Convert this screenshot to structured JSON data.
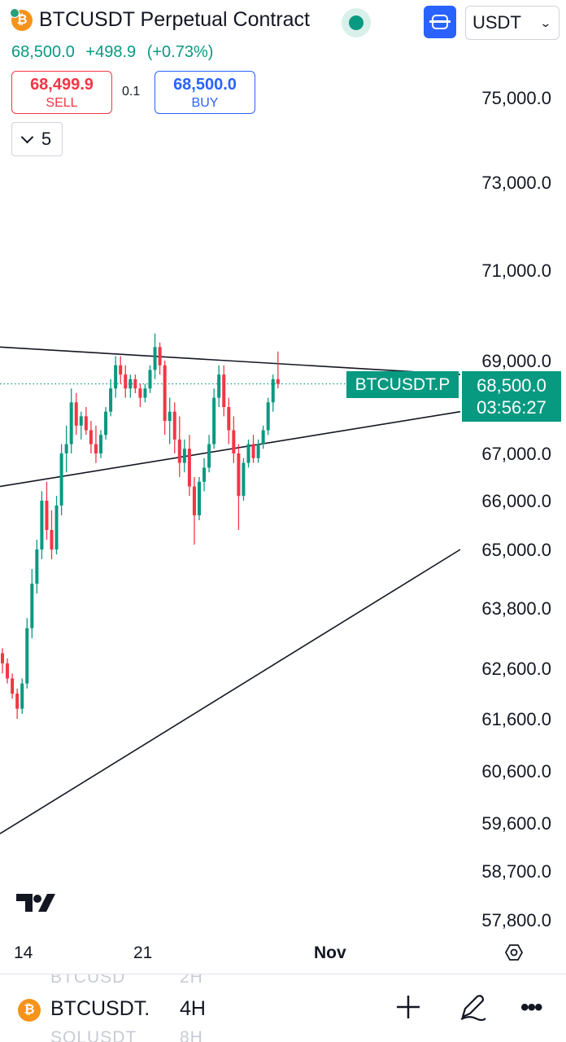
{
  "header": {
    "title": "BTCUSDT Perpetual Contract",
    "coin_glyph": "₿",
    "currency": "USDT",
    "last_price": "68,500.0",
    "change": "+498.9",
    "change_pct": "(+0.73%)",
    "sell_price": "68,499.9",
    "sell_label": "SELL",
    "spread": "0.1",
    "buy_price": "68,500.0",
    "buy_label": "BUY",
    "collapse_count": "5"
  },
  "price_scale": {
    "symbol_tag": "BTCUSDT.P",
    "current_price": "68,500.0",
    "countdown": "03:56:27"
  },
  "colors": {
    "up": "#089981",
    "down": "#f23645",
    "accent": "#2962ff"
  },
  "icons": [
    "bitcoin-icon",
    "live-indicator-icon",
    "scan-icon",
    "chevron-down-icon",
    "tradingview-logo-icon",
    "settings-icon",
    "plus-icon",
    "pen-icon",
    "more-icon"
  ],
  "bottom_bar": {
    "symbol": "BTCUSDT.",
    "interval": "4H",
    "ghost_top_symbol": "BTCUSD",
    "ghost_top_interval": "2H",
    "ghost_bottom_symbol": "SOLUSDT",
    "ghost_bottom_interval": "8H",
    "more": "•••"
  },
  "chart_data": {
    "type": "candlestick",
    "y_ticks": [
      "75,000.0",
      "73,000.0",
      "71,000.0",
      "69,000.0",
      "67,000.0",
      "66,000.0",
      "65,000.0",
      "63,800.0",
      "62,600.0",
      "61,600.0",
      "60,600.0",
      "59,600.0",
      "58,700.0",
      "57,800.0"
    ],
    "x_ticks": [
      "14",
      "21",
      "Nov"
    ],
    "current_price": 68500.0,
    "trendlines": [
      {
        "from": 69300,
        "to": 68700
      },
      {
        "from": 66300,
        "to": 67900
      },
      {
        "from": 59400,
        "to": 65000
      }
    ],
    "candles": [
      [
        62900,
        63000,
        62500,
        62700
      ],
      [
        62700,
        62800,
        62300,
        62400
      ],
      [
        62400,
        62500,
        62000,
        62100
      ],
      [
        62100,
        62200,
        61600,
        61800
      ],
      [
        61800,
        62400,
        61700,
        62300
      ],
      [
        62300,
        63600,
        62200,
        63400
      ],
      [
        63400,
        64600,
        63200,
        64300
      ],
      [
        64300,
        65200,
        64100,
        65000
      ],
      [
        65000,
        66200,
        64800,
        66000
      ],
      [
        66000,
        66400,
        65200,
        65400
      ],
      [
        65400,
        65800,
        64800,
        65000
      ],
      [
        65000,
        66100,
        64900,
        65900
      ],
      [
        65900,
        67200,
        65700,
        67000
      ],
      [
        67000,
        67600,
        66600,
        67200
      ],
      [
        67200,
        68400,
        67000,
        68100
      ],
      [
        68100,
        68300,
        67400,
        67600
      ],
      [
        67600,
        67900,
        67300,
        67800
      ],
      [
        67800,
        68000,
        67400,
        67500
      ],
      [
        67500,
        67700,
        67000,
        67200
      ],
      [
        67200,
        67600,
        66800,
        67000
      ],
      [
        67000,
        67500,
        66900,
        67400
      ],
      [
        67400,
        68000,
        67300,
        67900
      ],
      [
        67900,
        68600,
        67800,
        68400
      ],
      [
        68400,
        69100,
        68200,
        68900
      ],
      [
        68900,
        69100,
        68500,
        68700
      ],
      [
        68700,
        68900,
        68200,
        68400
      ],
      [
        68400,
        68700,
        68200,
        68600
      ],
      [
        68600,
        68700,
        68300,
        68400
      ],
      [
        68400,
        68500,
        68000,
        68200
      ],
      [
        68200,
        68500,
        68100,
        68400
      ],
      [
        68400,
        68900,
        68300,
        68800
      ],
      [
        68800,
        69600,
        68600,
        69300
      ],
      [
        69300,
        69400,
        68700,
        68900
      ],
      [
        68900,
        69000,
        67400,
        67700
      ],
      [
        67700,
        68200,
        67200,
        67900
      ],
      [
        67900,
        68100,
        67000,
        67300
      ],
      [
        67300,
        67800,
        66500,
        66800
      ],
      [
        66800,
        67300,
        66600,
        67100
      ],
      [
        67100,
        67400,
        66100,
        66300
      ],
      [
        66300,
        66500,
        65100,
        65700
      ],
      [
        65700,
        66500,
        65600,
        66400
      ],
      [
        66400,
        66900,
        66200,
        66700
      ],
      [
        66700,
        67400,
        66600,
        67200
      ],
      [
        67200,
        68400,
        67100,
        68200
      ],
      [
        68200,
        68900,
        68000,
        68700
      ],
      [
        68700,
        68900,
        67800,
        68000
      ],
      [
        68000,
        68200,
        67200,
        67500
      ],
      [
        67500,
        67800,
        66800,
        67000
      ],
      [
        67000,
        67200,
        65400,
        66100
      ],
      [
        66100,
        66900,
        66000,
        66800
      ],
      [
        66800,
        67300,
        66700,
        67200
      ],
      [
        67200,
        67400,
        66800,
        66900
      ],
      [
        66900,
        67300,
        66800,
        67200
      ],
      [
        67200,
        67600,
        67100,
        67500
      ],
      [
        67500,
        68200,
        67400,
        68100
      ],
      [
        68100,
        68700,
        67900,
        68600
      ],
      [
        68600,
        69200,
        68400,
        68500
      ]
    ]
  }
}
